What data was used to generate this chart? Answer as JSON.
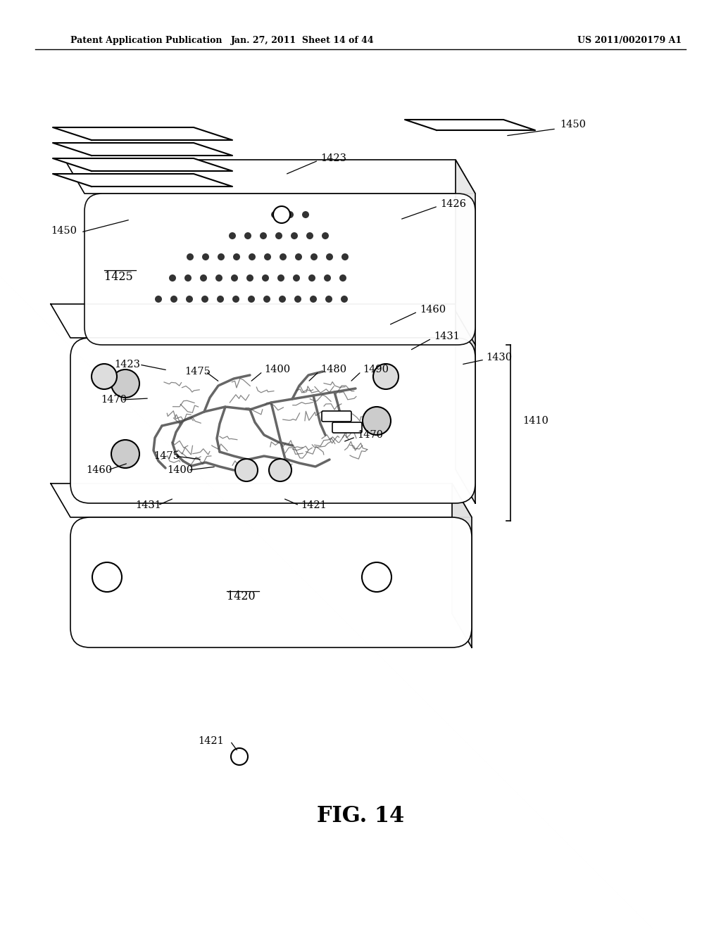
{
  "fig_label": "FIG. 14",
  "header_left": "Patent Application Publication",
  "header_center": "Jan. 27, 2011  Sheet 14 of 44",
  "header_right": "US 2011/0020179 A1",
  "bg_color": "#ffffff",
  "line_color": "#000000"
}
